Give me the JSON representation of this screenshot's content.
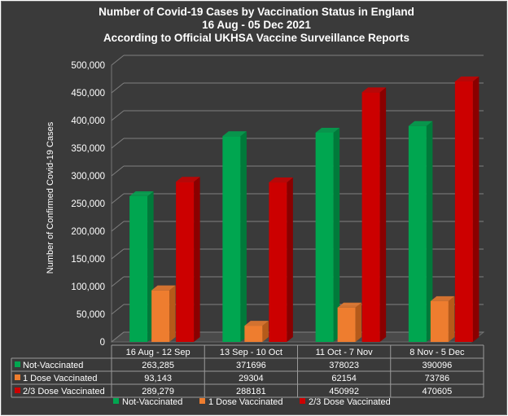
{
  "chart_data": {
    "type": "bar",
    "title_lines": [
      "Number of Covid-19 Cases by Vaccination Status in England",
      "16 Aug - 05 Dec 2021",
      "According to Official UKHSA Vaccine Surveillance Reports"
    ],
    "ylabel": "Number of Confirmed Covid-19 Cases",
    "ylim": [
      0,
      500000
    ],
    "yticks": [
      "0",
      "50,000",
      "100,000",
      "150,000",
      "200,000",
      "250,000",
      "300,000",
      "350,000",
      "400,000",
      "450,000",
      "500,000"
    ],
    "grid": true,
    "legend_position": "bottom",
    "categories": [
      "16 Aug - 12 Sep",
      "13 Sep - 10 Oct",
      "11 Oct - 7 Nov",
      "8 Nov - 5 Dec"
    ],
    "series": [
      {
        "name": "Not-Vaccinated",
        "color": "#00a650",
        "side": "#007a3a",
        "values": [
          263285,
          371696,
          378023,
          390096
        ],
        "labels": [
          "263,285",
          "371696",
          "378023",
          "390096"
        ]
      },
      {
        "name": "1 Dose Vaccinated",
        "color": "#ee7d2f",
        "side": "#b55a1a",
        "values": [
          93143,
          29304,
          62154,
          73786
        ],
        "labels": [
          "93,143",
          "29304",
          "62154",
          "73786"
        ]
      },
      {
        "name": "2/3 Dose Vaccinated",
        "color": "#cc0000",
        "side": "#8a0000",
        "values": [
          289279,
          288181,
          450992,
          470605
        ],
        "labels": [
          "289,279",
          "288181",
          "450992",
          "470605"
        ]
      }
    ]
  }
}
